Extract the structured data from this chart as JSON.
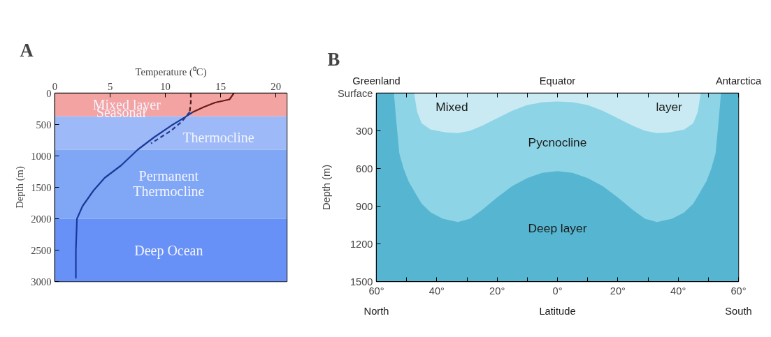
{
  "chart_data": [
    {
      "type": "line",
      "title": "A",
      "xlabel": "Temperature (⁰C)",
      "ylabel": "Depth (m)",
      "xlim": [
        0,
        21
      ],
      "xticks": [
        0,
        5,
        10,
        15,
        20
      ],
      "ylim": [
        3000,
        0
      ],
      "yticks": [
        0,
        500,
        1000,
        1500,
        2000,
        2500,
        3000
      ],
      "grid": false,
      "series": [
        {
          "color": "#6b1a1a",
          "line_style": "solid",
          "x": [
            16.2,
            15.8,
            14.5,
            13.5,
            12.5
          ],
          "values": [
            0,
            100,
            150,
            220,
            300
          ]
        },
        {
          "color": "#1a3a9a",
          "line_style": "solid",
          "x": [
            12.5,
            11.8,
            10.5,
            9,
            7.5,
            6,
            4.5,
            3.5,
            2.5,
            2,
            1.9,
            1.9
          ],
          "values": [
            300,
            380,
            520,
            700,
            900,
            1150,
            1350,
            1550,
            1800,
            2000,
            2500,
            2950
          ]
        },
        {
          "color": "#4a1a1a",
          "line_style": "dashed",
          "x": [
            12.3,
            12.3,
            12.2
          ],
          "values": [
            0,
            150,
            300
          ]
        },
        {
          "color": "#2a3a8a",
          "line_style": "dashed",
          "x": [
            12.2,
            11.5,
            10.5,
            8.7
          ],
          "values": [
            300,
            450,
            600,
            800
          ]
        }
      ],
      "bands": [
        {
          "axis": "y",
          "from": 0,
          "to": 370,
          "color": "#f4a3a3"
        },
        {
          "axis": "y",
          "from": 370,
          "to": 900,
          "color": "#9db9f8"
        },
        {
          "axis": "y",
          "from": 900,
          "to": 2000,
          "color": "#80a6f6"
        },
        {
          "axis": "y",
          "from": 2000,
          "to": 3000,
          "color": "#6791f6"
        }
      ],
      "annotations": [
        "Mixed layer",
        "Seasonal",
        "Thermocline",
        "Permanent",
        "Thermocline",
        "Deep Ocean"
      ]
    },
    {
      "type": "area",
      "title": "B",
      "xlabel": "Latitude",
      "ylabel": "Depth (m)",
      "xlim": [
        -60,
        60
      ],
      "xticks": [
        {
          "value": -60,
          "label": "60°"
        },
        {
          "value": -50,
          "label": null
        },
        {
          "value": -40,
          "label": "40°"
        },
        {
          "value": -30,
          "label": null
        },
        {
          "value": -20,
          "label": "20°"
        },
        {
          "value": -10,
          "label": null
        },
        {
          "value": 0,
          "label": "0°"
        },
        {
          "value": 10,
          "label": null
        },
        {
          "value": 20,
          "label": "20°"
        },
        {
          "value": 30,
          "label": null
        },
        {
          "value": 40,
          "label": "40°"
        },
        {
          "value": 50,
          "label": null
        },
        {
          "value": 60,
          "label": "60°"
        }
      ],
      "ylim": [
        1500,
        0
      ],
      "yticks": [
        {
          "value": 0,
          "label": "Surface"
        },
        300,
        600,
        900,
        1200,
        1500
      ],
      "grid": false,
      "bands": [
        {
          "axis": "y",
          "from": 0,
          "to": 1500,
          "color": "#56b5d0"
        }
      ],
      "series": [
        {
          "color": "#8dd4e6",
          "x": [
            -54.2,
            -53.5,
            -52.4,
            -51,
            -49.4,
            -47,
            -45,
            -42,
            -38,
            -33,
            -29,
            -25,
            -20,
            -15,
            -10,
            -5,
            0,
            5,
            10,
            15,
            20,
            25,
            29,
            33,
            38,
            42,
            45,
            47,
            49.4,
            51,
            52.4,
            53.5,
            54.2
          ],
          "values": [
            0,
            200,
            480,
            600,
            700,
            800,
            880,
            950,
            1000,
            1027,
            1000,
            930,
            830,
            740,
            676,
            635,
            621,
            635,
            676,
            740,
            830,
            930,
            1000,
            1027,
            1000,
            950,
            880,
            800,
            700,
            600,
            480,
            200,
            0
          ]
        },
        {
          "color": "#c9eaf2",
          "x": [
            -47.5,
            -46.5,
            -45,
            -42,
            -37,
            -33,
            -29,
            -25,
            -20,
            -15,
            -10,
            -5,
            0,
            5,
            10,
            15,
            20,
            25,
            29,
            33,
            37,
            42,
            45,
            46.5,
            47.5
          ],
          "values": [
            0,
            150,
            240,
            290,
            312,
            318,
            300,
            260,
            200,
            140,
            95,
            72,
            67,
            72,
            95,
            140,
            200,
            260,
            300,
            318,
            312,
            290,
            240,
            150,
            0
          ]
        }
      ],
      "annotations": [
        "Mixed",
        "layer",
        "Pycnocline",
        "Deep layer",
        "Greenland",
        "Equator",
        "Antarctica",
        "North",
        "South"
      ]
    }
  ]
}
